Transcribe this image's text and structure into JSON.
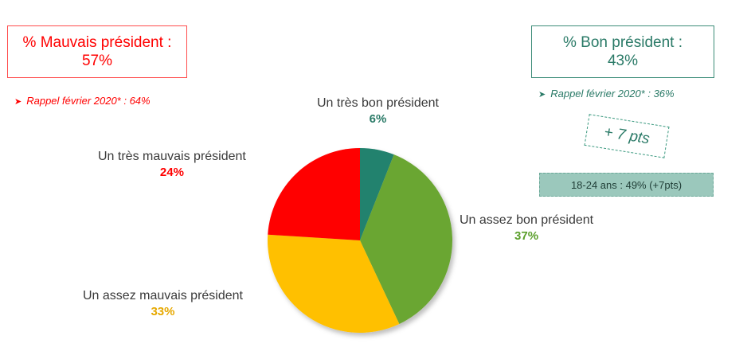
{
  "left_box": {
    "title": "% Mauvais président :",
    "value": "57%"
  },
  "left_rappel": "Rappel février 2020* : 64%",
  "right_box": {
    "title": "% Bon président :",
    "value": "43%"
  },
  "right_rappel": "Rappel février 2020* : 36%",
  "change_badge": "+ 7 pts",
  "age_note": "18-24 ans : 49% (+7pts)",
  "chart_data": {
    "type": "pie",
    "slices": [
      {
        "name": "Un très bon président",
        "value": 6,
        "label": "6%",
        "color": "#22826e"
      },
      {
        "name": "Un assez bon président",
        "value": 37,
        "label": "37%",
        "color": "#6ba630"
      },
      {
        "name": "Un assez mauvais président",
        "value": 33,
        "label": "33%",
        "color": "#ffc000"
      },
      {
        "name": "Un très mauvais président",
        "value": 24,
        "label": "24%",
        "color": "#ff0000"
      }
    ],
    "pct_colors": [
      "#2a7a67",
      "#5a9e2a",
      "#e6a800",
      "#ff0000"
    ]
  }
}
